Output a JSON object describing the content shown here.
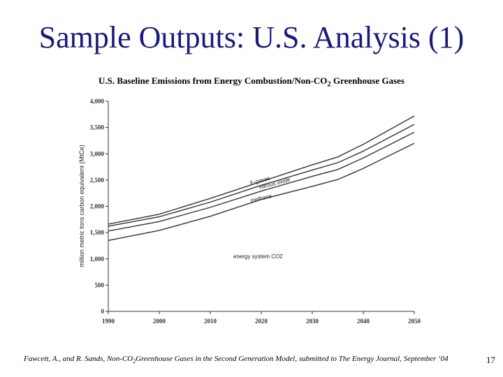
{
  "slide": {
    "title": "Sample Outputs: U.S. Analysis (1)",
    "citation_part1": "Fawcett, A., and R. Sands, Non-CO",
    "citation_sub": "2",
    "citation_part2": "Greenhouse Gases in the Second Generation Model, submitted to The Energy Journal, September ‘04",
    "page_number": "17"
  },
  "chart_data": {
    "type": "line",
    "title_main": "U.S. Baseline Emissions from Energy Combustion/Non-CO",
    "title_sub": "2",
    "title_end": " Greenhouse Gases",
    "ylabel": "million metric tons carbon equivalent (MtCe)",
    "x": [
      1990,
      2000,
      2010,
      2020,
      2030,
      2035,
      2040,
      2050
    ],
    "xticks": [
      1990,
      2000,
      2010,
      2020,
      2030,
      2040,
      2050
    ],
    "ylim": [
      0,
      4000
    ],
    "yticks": [
      0,
      500,
      1000,
      1500,
      2000,
      2500,
      3000,
      3500,
      4000
    ],
    "ytick_labels": [
      "0",
      "500",
      "1,000",
      "1,500",
      "2,000",
      "2,500",
      "3,000",
      "3,500",
      "4,000"
    ],
    "grid": false,
    "series": [
      {
        "name": "energy system CO2",
        "values": [
          1350,
          1540,
          1810,
          2130,
          2380,
          2510,
          2720,
          3200
        ]
      },
      {
        "name": "methane",
        "values": [
          1530,
          1710,
          1980,
          2290,
          2570,
          2700,
          2920,
          3410
        ]
      },
      {
        "name": "nitrous oxide",
        "values": [
          1620,
          1800,
          2080,
          2400,
          2690,
          2830,
          3050,
          3560
        ]
      },
      {
        "name": "F-gases",
        "values": [
          1660,
          1850,
          2150,
          2470,
          2790,
          2940,
          3180,
          3720
        ]
      }
    ],
    "annotations": {
      "energy": "energy system CO2",
      "methane": "methane",
      "n2o": "nitrous oxide",
      "fgases": "F-gases"
    }
  }
}
